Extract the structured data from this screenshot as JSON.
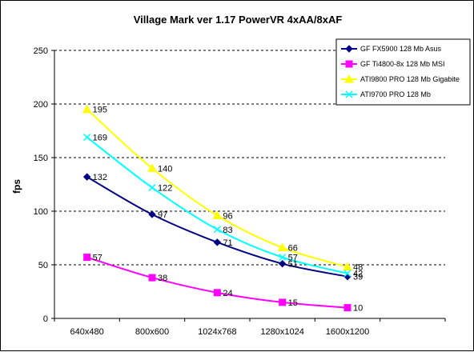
{
  "chart_data": {
    "type": "line",
    "title": "Village Mark ver 1.17 PowerVR 4xAA/8xAF",
    "xlabel": "",
    "ylabel": "fps",
    "ylim": [
      0,
      250
    ],
    "yticks": [
      0,
      50,
      100,
      150,
      200,
      250
    ],
    "grid": "horizontal dashed",
    "legend": "top-right",
    "categories": [
      "640x480",
      "800x600",
      "1024x768",
      "1280x1024",
      "1600x1200"
    ],
    "series": [
      {
        "name": "GF FX5900 128 Mb Asus",
        "color": "#000080",
        "marker": "diamond",
        "values": [
          132,
          97,
          71,
          51,
          39
        ]
      },
      {
        "name": "GF Ti4800-8x 128 Mb MSI",
        "color": "#ff00ff",
        "marker": "square",
        "values": [
          57,
          38,
          24,
          15,
          10
        ]
      },
      {
        "name": "ATI9800 PRO 128 Mb Gigabite",
        "color": "#ffff00",
        "marker": "triangle",
        "values": [
          195,
          140,
          96,
          66,
          48
        ]
      },
      {
        "name": "ATI9700 PRO 128 Mb",
        "color": "#00ffff",
        "marker": "x",
        "values": [
          169,
          122,
          83,
          57,
          42
        ]
      }
    ]
  }
}
